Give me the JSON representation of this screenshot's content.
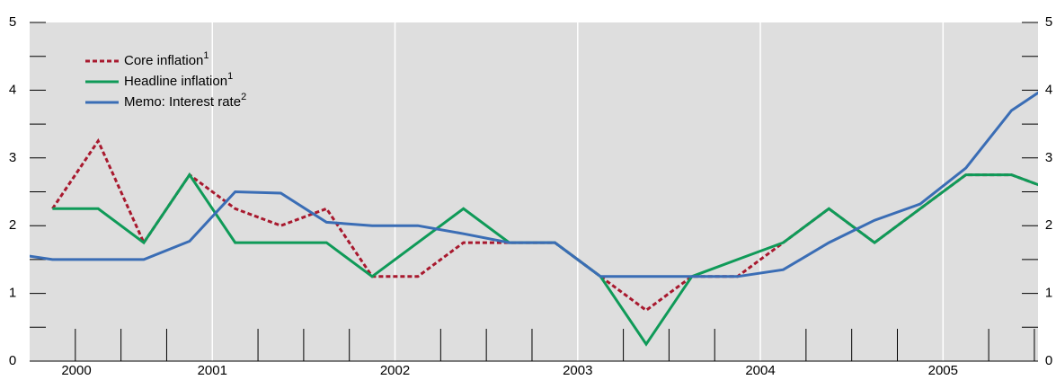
{
  "chart_data": {
    "type": "line",
    "x": [
      1999.875,
      2000.125,
      2000.375,
      2000.625,
      2000.875,
      2001.125,
      2001.375,
      2001.625,
      2001.875,
      2002.125,
      2002.375,
      2002.625,
      2002.875,
      2003.125,
      2003.375,
      2003.625,
      2003.875,
      2004.125,
      2004.375,
      2004.625,
      2004.875,
      2005.125,
      2005.375,
      2005.625
    ],
    "series": [
      {
        "name": "Core inflation",
        "footnote": "1",
        "color": "#a8192e",
        "dash": true,
        "values": [
          null,
          2.25,
          3.25,
          1.75,
          2.75,
          2.25,
          2.0,
          2.25,
          1.25,
          1.25,
          1.75,
          1.75,
          1.75,
          1.25,
          0.75,
          1.25,
          1.25,
          1.75,
          2.25,
          1.75,
          2.25,
          2.75,
          2.75,
          2.5
        ]
      },
      {
        "name": "Headline inflation",
        "footnote": "1",
        "color": "#0f9a58",
        "dash": false,
        "values": [
          null,
          2.25,
          2.25,
          1.75,
          2.75,
          1.75,
          1.75,
          1.75,
          1.25,
          1.75,
          2.25,
          1.75,
          1.75,
          1.25,
          0.25,
          1.25,
          1.5,
          1.75,
          2.25,
          1.75,
          2.25,
          2.75,
          2.75,
          2.5
        ]
      },
      {
        "name": "Memo: Interest rate",
        "footnote": "2",
        "color": "#3a6db5",
        "dash": false,
        "values": [
          1.6,
          1.5,
          1.5,
          1.5,
          1.77,
          2.5,
          2.48,
          2.05,
          2.0,
          2.0,
          1.88,
          1.75,
          1.75,
          1.25,
          1.25,
          1.25,
          1.25,
          1.35,
          1.75,
          2.08,
          2.32,
          2.85,
          3.7,
          4.15
        ]
      }
    ],
    "xlim": [
      2000.0,
      2005.52
    ],
    "xticks": [
      2000,
      2001,
      2002,
      2003,
      2004,
      2005
    ],
    "xminorticks": [
      2000.25,
      2000.5,
      2000.75,
      2001.25,
      2001.5,
      2001.75,
      2002.25,
      2002.5,
      2002.75,
      2003.25,
      2003.5,
      2003.75,
      2004.25,
      2004.5,
      2004.75,
      2005.25,
      2005.5
    ],
    "ylim": [
      0,
      5
    ],
    "yticks": [
      0,
      1,
      2,
      3,
      4,
      5
    ],
    "yminorticks": [
      0.5,
      1.5,
      2.5,
      3.5,
      4.5
    ],
    "grid": "x",
    "legend": "upper left"
  }
}
